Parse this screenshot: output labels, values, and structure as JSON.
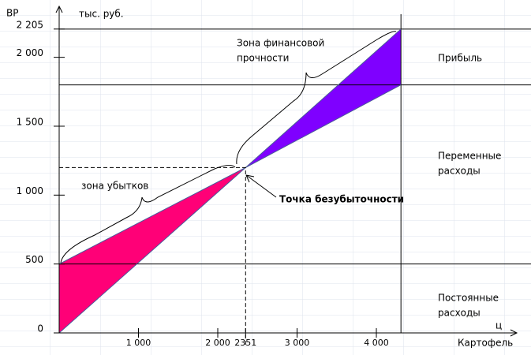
{
  "chart_data": {
    "type": "line",
    "y_axis_label": "ВР",
    "y_unit_label": "тыс. руб.",
    "x_axis_label": "ц",
    "x_axis_title": "Картофель",
    "x": [
      0,
      2351,
      4310
    ],
    "series": [
      {
        "values": [
          0,
          1200,
          2205
        ],
        "color": "#4a5a9a"
      },
      {
        "values": [
          500,
          1200,
          1800
        ],
        "color": "#4a5a9a"
      }
    ],
    "loss_color": "#ff0077",
    "profit_color": "#7f00ff",
    "hlines": [
      2205,
      1800,
      500
    ],
    "vline": 4310,
    "break_even": {
      "x": 2351,
      "y": 1200
    },
    "xlim": [
      0,
      5950
    ],
    "ylim": [
      0,
      2370
    ],
    "xticks": [
      {
        "value": 1000,
        "label": "1 000"
      },
      {
        "value": 2000,
        "label": "2 000"
      },
      2351,
      {
        "value": 3000,
        "label": "3 000"
      },
      {
        "value": 4000,
        "label": "4 000"
      }
    ],
    "yticks": [
      0,
      500,
      {
        "value": 1000,
        "label": "1 000"
      },
      {
        "value": 1500,
        "label": "1 500"
      },
      {
        "value": 2000,
        "label": "2 000"
      },
      {
        "value": 2205,
        "label": "2 205"
      }
    ],
    "annotations": {
      "safety_zone": [
        "Зона финансовой",
        "прочности"
      ],
      "profit": "Прибыль",
      "variable_costs": [
        "Переменные",
        "расходы"
      ],
      "loss_zone": "зона убытков",
      "break_even_label": "Точка безубыточности",
      "fixed_costs": [
        "Постоянные",
        "расходы"
      ]
    }
  }
}
